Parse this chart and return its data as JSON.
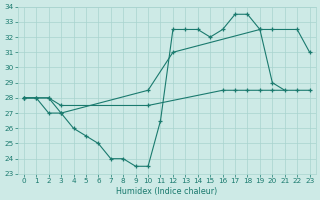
{
  "line1_x": [
    0,
    1,
    2,
    3,
    4,
    5,
    6,
    7,
    8,
    9,
    10,
    11,
    12,
    13,
    14,
    15,
    16,
    17,
    18,
    19,
    20,
    21
  ],
  "line1_y": [
    28,
    28,
    27,
    27,
    26,
    25.5,
    25,
    24,
    24,
    23.5,
    23.5,
    26.5,
    32.5,
    32.5,
    32.5,
    32,
    32.5,
    33.5,
    33.5,
    32.5,
    29,
    28.5
  ],
  "line2_x": [
    0,
    2,
    3,
    10,
    12,
    19,
    20,
    22,
    23
  ],
  "line2_y": [
    28,
    28,
    27,
    28.5,
    31,
    32.5,
    32.5,
    32.5,
    31
  ],
  "line3_x": [
    0,
    1,
    2,
    3,
    10,
    16,
    17,
    18,
    19,
    20,
    22,
    23
  ],
  "line3_y": [
    28,
    28,
    28,
    27.5,
    27.5,
    28.5,
    28.5,
    28.5,
    28.5,
    28.5,
    28.5,
    28.5
  ],
  "color": "#1a7a6e",
  "bg_color": "#cdeae6",
  "grid_color": "#a8d4cf",
  "xlabel": "Humidex (Indice chaleur)",
  "xlim": [
    -0.5,
    23.5
  ],
  "ylim": [
    23,
    34
  ],
  "yticks": [
    23,
    24,
    25,
    26,
    27,
    28,
    29,
    30,
    31,
    32,
    33,
    34
  ],
  "xticks": [
    0,
    1,
    2,
    3,
    4,
    5,
    6,
    7,
    8,
    9,
    10,
    11,
    12,
    13,
    14,
    15,
    16,
    17,
    18,
    19,
    20,
    21,
    22,
    23
  ]
}
